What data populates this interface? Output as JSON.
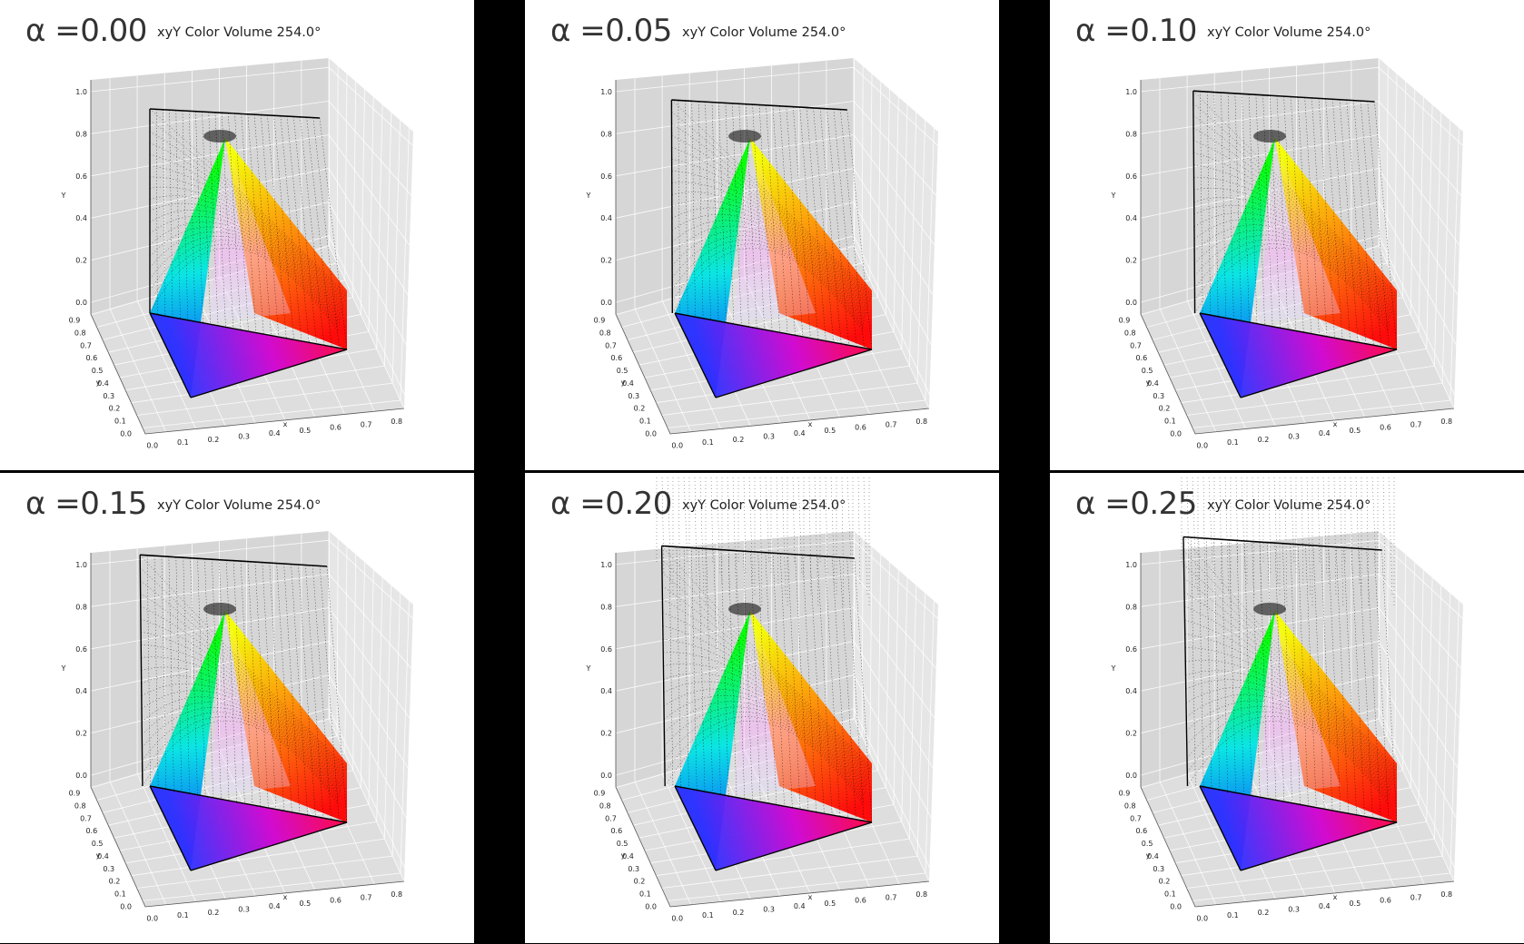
{
  "chart_data": [
    {
      "type": "scatter",
      "panel_label": "α =0.00",
      "alpha": 0.0,
      "title": "xyY Color Volume 254.0°",
      "xlabel": "x",
      "ylabel": "y",
      "zlabel": "Y",
      "x_ticks": [
        "0.0",
        "0.1",
        "0.2",
        "0.3",
        "0.4",
        "0.5",
        "0.6",
        "0.7",
        "0.8"
      ],
      "y_ticks": [
        "0.0",
        "0.1",
        "0.2",
        "0.3",
        "0.4",
        "0.5",
        "0.6",
        "0.7",
        "0.8",
        "0.9"
      ],
      "z_ticks": [
        "0.0",
        "0.2",
        "0.4",
        "0.6",
        "0.8",
        "1.0"
      ],
      "xlim": [
        0,
        0.8
      ],
      "ylim": [
        0,
        0.9
      ],
      "zlim": [
        0,
        1.0
      ]
    },
    {
      "type": "scatter",
      "panel_label": "α =0.05",
      "alpha": 0.05,
      "title": "xyY Color Volume 254.0°",
      "xlabel": "x",
      "ylabel": "y",
      "zlabel": "Y",
      "x_ticks": [
        "0.0",
        "0.1",
        "0.2",
        "0.3",
        "0.4",
        "0.5",
        "0.6",
        "0.7",
        "0.8"
      ],
      "y_ticks": [
        "0.0",
        "0.1",
        "0.2",
        "0.3",
        "0.4",
        "0.5",
        "0.6",
        "0.7",
        "0.8",
        "0.9"
      ],
      "z_ticks": [
        "0.0",
        "0.2",
        "0.4",
        "0.6",
        "0.8",
        "1.0"
      ],
      "xlim": [
        0,
        0.8
      ],
      "ylim": [
        0,
        0.9
      ],
      "zlim": [
        0,
        1.0
      ]
    },
    {
      "type": "scatter",
      "panel_label": "α =0.10",
      "alpha": 0.1,
      "title": "xyY Color Volume 254.0°",
      "xlabel": "x",
      "ylabel": "y",
      "zlabel": "Y",
      "x_ticks": [
        "0.0",
        "0.1",
        "0.2",
        "0.3",
        "0.4",
        "0.5",
        "0.6",
        "0.7",
        "0.8"
      ],
      "y_ticks": [
        "0.0",
        "0.1",
        "0.2",
        "0.3",
        "0.4",
        "0.5",
        "0.6",
        "0.7",
        "0.8",
        "0.9"
      ],
      "z_ticks": [
        "0.0",
        "0.2",
        "0.4",
        "0.6",
        "0.8",
        "1.0"
      ],
      "xlim": [
        0,
        0.8
      ],
      "ylim": [
        0,
        0.9
      ],
      "zlim": [
        0,
        1.0
      ]
    },
    {
      "type": "scatter",
      "panel_label": "α =0.15",
      "alpha": 0.15,
      "title": "xyY Color Volume 254.0°",
      "xlabel": "x",
      "ylabel": "y",
      "zlabel": "Y",
      "x_ticks": [
        "0.0",
        "0.1",
        "0.2",
        "0.3",
        "0.4",
        "0.5",
        "0.6",
        "0.7",
        "0.8"
      ],
      "y_ticks": [
        "0.0",
        "0.1",
        "0.2",
        "0.3",
        "0.4",
        "0.5",
        "0.6",
        "0.7",
        "0.8",
        "0.9"
      ],
      "z_ticks": [
        "0.0",
        "0.2",
        "0.4",
        "0.6",
        "0.8",
        "1.0"
      ],
      "xlim": [
        0,
        0.8
      ],
      "ylim": [
        0,
        0.9
      ],
      "zlim": [
        0,
        1.0
      ]
    },
    {
      "type": "scatter",
      "panel_label": "α =0.20",
      "alpha": 0.2,
      "title": "xyY Color Volume 254.0°",
      "xlabel": "x",
      "ylabel": "y",
      "zlabel": "Y",
      "x_ticks": [
        "0.0",
        "0.1",
        "0.2",
        "0.3",
        "0.4",
        "0.5",
        "0.6",
        "0.7",
        "0.8"
      ],
      "y_ticks": [
        "0.0",
        "0.1",
        "0.2",
        "0.3",
        "0.4",
        "0.5",
        "0.6",
        "0.7",
        "0.8",
        "0.9"
      ],
      "z_ticks": [
        "0.0",
        "0.2",
        "0.4",
        "0.6",
        "0.8",
        "1.0"
      ],
      "xlim": [
        0,
        0.8
      ],
      "ylim": [
        0,
        0.9
      ],
      "zlim": [
        0,
        1.0
      ]
    },
    {
      "type": "scatter",
      "panel_label": "α =0.25",
      "alpha": 0.25,
      "title": "xyY Color Volume 254.0°",
      "xlabel": "x",
      "ylabel": "y",
      "zlabel": "Y",
      "x_ticks": [
        "0.0",
        "0.1",
        "0.2",
        "0.3",
        "0.4",
        "0.5",
        "0.6",
        "0.7",
        "0.8"
      ],
      "y_ticks": [
        "0.0",
        "0.1",
        "0.2",
        "0.3",
        "0.4",
        "0.5",
        "0.6",
        "0.7",
        "0.8",
        "0.9"
      ],
      "z_ticks": [
        "0.0",
        "0.2",
        "0.4",
        "0.6",
        "0.8",
        "1.0"
      ],
      "xlim": [
        0,
        0.8
      ],
      "ylim": [
        0,
        0.9
      ],
      "zlim": [
        0,
        1.0
      ]
    }
  ],
  "colors": {
    "background": "#000000",
    "panel": "#ffffff",
    "pane_back": "#d6d6d6",
    "pane_side": "#e6e6e6",
    "pane_floor": "#dedede",
    "gamut_red": "#ff0000",
    "gamut_green": "#00ff00",
    "gamut_blue": "#0000ff",
    "wireframe": "#000000"
  },
  "grid": true
}
